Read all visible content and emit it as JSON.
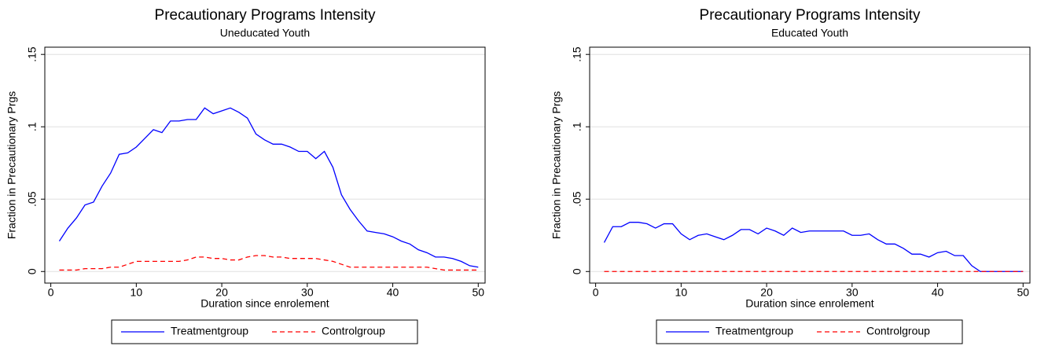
{
  "chart_data": [
    {
      "type": "line",
      "title": "Precautionary Programs Intensity",
      "subtitle": "Uneducated Youth",
      "xlabel": "Duration since enrolement",
      "ylabel": "Fraction in Precautionary Prgs",
      "x": [
        1,
        2,
        3,
        4,
        5,
        6,
        7,
        8,
        9,
        10,
        11,
        12,
        13,
        14,
        15,
        16,
        17,
        18,
        19,
        20,
        21,
        22,
        23,
        24,
        25,
        26,
        27,
        28,
        29,
        30,
        31,
        32,
        33,
        34,
        35,
        36,
        37,
        38,
        39,
        40,
        41,
        42,
        43,
        44,
        45,
        46,
        47,
        48,
        49,
        50
      ],
      "series": [
        {
          "name": "Treatmentgroup",
          "color": "#0000ff",
          "dashed": false,
          "values": [
            0.021,
            0.03,
            0.037,
            0.046,
            0.048,
            0.059,
            0.068,
            0.081,
            0.082,
            0.086,
            0.092,
            0.098,
            0.096,
            0.104,
            0.104,
            0.105,
            0.105,
            0.113,
            0.109,
            0.111,
            0.113,
            0.11,
            0.106,
            0.095,
            0.091,
            0.088,
            0.088,
            0.086,
            0.083,
            0.083,
            0.078,
            0.083,
            0.072,
            0.053,
            0.043,
            0.035,
            0.028,
            0.027,
            0.026,
            0.024,
            0.021,
            0.019,
            0.015,
            0.013,
            0.01,
            0.01,
            0.009,
            0.007,
            0.004,
            0.003
          ]
        },
        {
          "name": "Controlgroup",
          "color": "#ff0000",
          "dashed": true,
          "values": [
            0.001,
            0.001,
            0.001,
            0.002,
            0.002,
            0.002,
            0.003,
            0.003,
            0.005,
            0.007,
            0.007,
            0.007,
            0.007,
            0.007,
            0.007,
            0.008,
            0.01,
            0.01,
            0.009,
            0.009,
            0.008,
            0.008,
            0.01,
            0.011,
            0.011,
            0.01,
            0.01,
            0.009,
            0.009,
            0.009,
            0.009,
            0.008,
            0.007,
            0.005,
            0.003,
            0.003,
            0.003,
            0.003,
            0.003,
            0.003,
            0.003,
            0.003,
            0.003,
            0.003,
            0.002,
            0.001,
            0.001,
            0.001,
            0.001,
            0.001
          ]
        }
      ],
      "xlim": [
        -0.7,
        50.8
      ],
      "ylim": [
        -0.008,
        0.155
      ],
      "xticks": [
        0,
        10,
        20,
        30,
        40,
        50
      ],
      "yticks": [
        0,
        {
          "value": 0.05,
          "label": ".05"
        },
        {
          "value": 0.1,
          "label": ".1"
        },
        {
          "value": 0.15,
          "label": ".15"
        }
      ],
      "grid": true
    },
    {
      "type": "line",
      "title": "Precautionary Programs Intensity",
      "subtitle": "Educated Youth",
      "xlabel": "Duration since enrolement",
      "ylabel": "Fraction in Precautionary Prgs",
      "x": [
        1,
        2,
        3,
        4,
        5,
        6,
        7,
        8,
        9,
        10,
        11,
        12,
        13,
        14,
        15,
        16,
        17,
        18,
        19,
        20,
        21,
        22,
        23,
        24,
        25,
        26,
        27,
        28,
        29,
        30,
        31,
        32,
        33,
        34,
        35,
        36,
        37,
        38,
        39,
        40,
        41,
        42,
        43,
        44,
        45,
        46,
        47,
        48,
        49,
        50
      ],
      "series": [
        {
          "name": "Treatmentgroup",
          "color": "#0000ff",
          "dashed": false,
          "values": [
            0.02,
            0.031,
            0.031,
            0.034,
            0.034,
            0.033,
            0.03,
            0.033,
            0.033,
            0.026,
            0.022,
            0.025,
            0.026,
            0.024,
            0.022,
            0.025,
            0.029,
            0.029,
            0.026,
            0.03,
            0.028,
            0.025,
            0.03,
            0.027,
            0.028,
            0.028,
            0.028,
            0.028,
            0.028,
            0.025,
            0.025,
            0.026,
            0.022,
            0.019,
            0.019,
            0.016,
            0.012,
            0.012,
            0.01,
            0.013,
            0.014,
            0.011,
            0.011,
            0.004,
            0,
            0,
            0,
            0,
            0,
            0
          ]
        },
        {
          "name": "Controlgroup",
          "color": "#ff0000",
          "dashed": true,
          "values": [
            0,
            0,
            0,
            0,
            0,
            0,
            0,
            0,
            0,
            0,
            0,
            0,
            0,
            0,
            0,
            0,
            0,
            0,
            0,
            0,
            0,
            0,
            0,
            0,
            0,
            0,
            0,
            0,
            0,
            0,
            0,
            0,
            0,
            0,
            0,
            0,
            0,
            0,
            0,
            0,
            0,
            0,
            0,
            0,
            0,
            0,
            0,
            0,
            0,
            0
          ]
        }
      ],
      "xlim": [
        -0.7,
        50.8
      ],
      "ylim": [
        -0.008,
        0.155
      ],
      "xticks": [
        0,
        10,
        20,
        30,
        40,
        50
      ],
      "yticks": [
        0,
        {
          "value": 0.05,
          "label": ".05"
        },
        {
          "value": 0.1,
          "label": ".1"
        },
        {
          "value": 0.15,
          "label": ".15"
        }
      ],
      "grid": true
    }
  ]
}
